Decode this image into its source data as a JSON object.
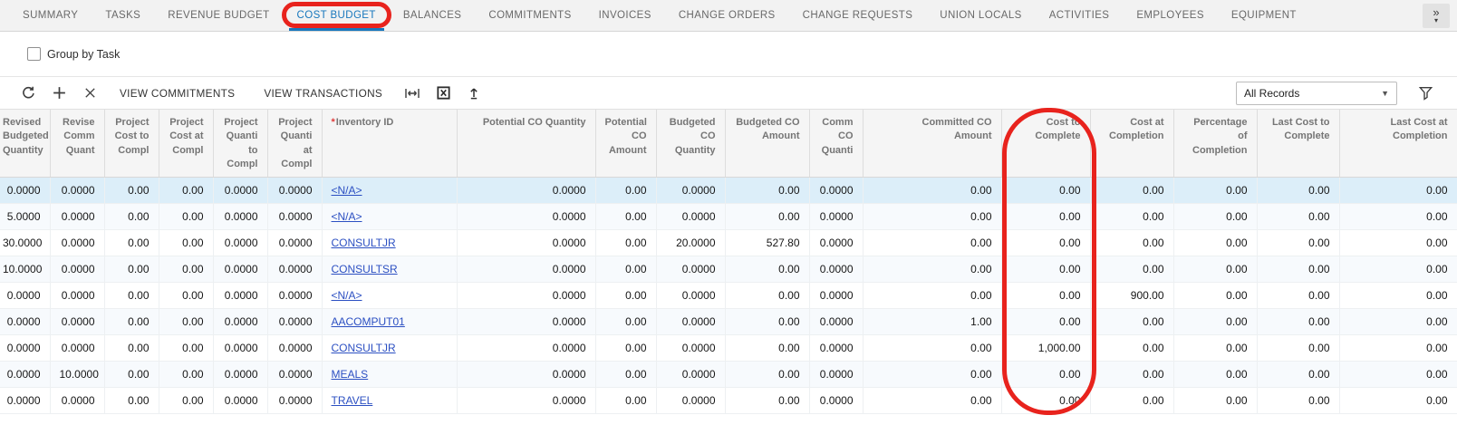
{
  "annotation_color": "#e8231d",
  "tabs": {
    "items": [
      {
        "label": "SUMMARY",
        "active": false
      },
      {
        "label": "TASKS",
        "active": false
      },
      {
        "label": "REVENUE BUDGET",
        "active": false
      },
      {
        "label": "COST BUDGET",
        "active": true,
        "annotated": true
      },
      {
        "label": "BALANCES",
        "active": false
      },
      {
        "label": "COMMITMENTS",
        "active": false
      },
      {
        "label": "INVOICES",
        "active": false
      },
      {
        "label": "CHANGE ORDERS",
        "active": false
      },
      {
        "label": "CHANGE REQUESTS",
        "active": false
      },
      {
        "label": "UNION LOCALS",
        "active": false
      },
      {
        "label": "ACTIVITIES",
        "active": false
      },
      {
        "label": "EMPLOYEES",
        "active": false
      },
      {
        "label": "EQUIPMENT",
        "active": false
      }
    ],
    "overflow_icon": "chevron-double-right-icon",
    "overflow_glyph": "»"
  },
  "filter_bar": {
    "group_by_task_label": "Group by Task",
    "group_by_task_checked": false
  },
  "toolbar": {
    "icons": [
      "refresh-icon",
      "add-row-icon",
      "delete-row-icon",
      "fit-width-icon",
      "export-excel-icon",
      "upload-icon"
    ],
    "view_commitments_label": "VIEW COMMITMENTS",
    "view_transactions_label": "VIEW TRANSACTIONS",
    "records_filter_value": "All Records",
    "filter_icon": "funnel-icon"
  },
  "grid": {
    "columns": [
      {
        "label": "Revised Budgeted Quantity"
      },
      {
        "label": "Revise Comm Quant"
      },
      {
        "label": "Project Cost to Compl"
      },
      {
        "label": "Project Cost at Compl"
      },
      {
        "label": "Project Quanti to Compl"
      },
      {
        "label": "Project Quanti at Compl"
      },
      {
        "label": "Inventory ID",
        "required": true
      },
      {
        "label": "Potential CO Quantity"
      },
      {
        "label": "Potential CO Amount"
      },
      {
        "label": "Budgeted CO Quantity"
      },
      {
        "label": "Budgeted CO Amount"
      },
      {
        "label": "Comm CO Quanti"
      },
      {
        "label": "Committed CO Amount"
      },
      {
        "label": "Cost to Complete",
        "annotated": true
      },
      {
        "label": "Cost at Completion"
      },
      {
        "label": "Percentage of Completion"
      },
      {
        "label": "Last Cost to Complete"
      },
      {
        "label": "Last Cost at Completion"
      }
    ],
    "selected_row_index": 0,
    "rows": [
      [
        "0.0000",
        "0.0000",
        "0.00",
        "0.00",
        "0.0000",
        "0.0000",
        "<N/A>",
        "0.0000",
        "0.00",
        "0.0000",
        "0.00",
        "0.0000",
        "0.00",
        "0.00",
        "0.00",
        "0.00",
        "0.00",
        "0.00"
      ],
      [
        "5.0000",
        "0.0000",
        "0.00",
        "0.00",
        "0.0000",
        "0.0000",
        "<N/A>",
        "0.0000",
        "0.00",
        "0.0000",
        "0.00",
        "0.0000",
        "0.00",
        "0.00",
        "0.00",
        "0.00",
        "0.00",
        "0.00"
      ],
      [
        "30.0000",
        "0.0000",
        "0.00",
        "0.00",
        "0.0000",
        "0.0000",
        "CONSULTJR",
        "0.0000",
        "0.00",
        "20.0000",
        "527.80",
        "0.0000",
        "0.00",
        "0.00",
        "0.00",
        "0.00",
        "0.00",
        "0.00"
      ],
      [
        "10.0000",
        "0.0000",
        "0.00",
        "0.00",
        "0.0000",
        "0.0000",
        "CONSULTSR",
        "0.0000",
        "0.00",
        "0.0000",
        "0.00",
        "0.0000",
        "0.00",
        "0.00",
        "0.00",
        "0.00",
        "0.00",
        "0.00"
      ],
      [
        "0.0000",
        "0.0000",
        "0.00",
        "0.00",
        "0.0000",
        "0.0000",
        "<N/A>",
        "0.0000",
        "0.00",
        "0.0000",
        "0.00",
        "0.0000",
        "0.00",
        "0.00",
        "900.00",
        "0.00",
        "0.00",
        "0.00"
      ],
      [
        "0.0000",
        "0.0000",
        "0.00",
        "0.00",
        "0.0000",
        "0.0000",
        "AACOMPUT01",
        "0.0000",
        "0.00",
        "0.0000",
        "0.00",
        "0.0000",
        "1.00",
        "0.00",
        "0.00",
        "0.00",
        "0.00",
        "0.00"
      ],
      [
        "0.0000",
        "0.0000",
        "0.00",
        "0.00",
        "0.0000",
        "0.0000",
        "CONSULTJR",
        "0.0000",
        "0.00",
        "0.0000",
        "0.00",
        "0.0000",
        "0.00",
        "1,000.00",
        "0.00",
        "0.00",
        "0.00",
        "0.00"
      ],
      [
        "0.0000",
        "10.0000",
        "0.00",
        "0.00",
        "0.0000",
        "0.0000",
        "MEALS",
        "0.0000",
        "0.00",
        "0.0000",
        "0.00",
        "0.0000",
        "0.00",
        "0.00",
        "0.00",
        "0.00",
        "0.00",
        "0.00"
      ],
      [
        "0.0000",
        "0.0000",
        "0.00",
        "0.00",
        "0.0000",
        "0.0000",
        "TRAVEL",
        "0.0000",
        "0.00",
        "0.0000",
        "0.00",
        "0.0000",
        "0.00",
        "0.00",
        "0.00",
        "0.00",
        "0.00",
        "0.00"
      ]
    ]
  }
}
